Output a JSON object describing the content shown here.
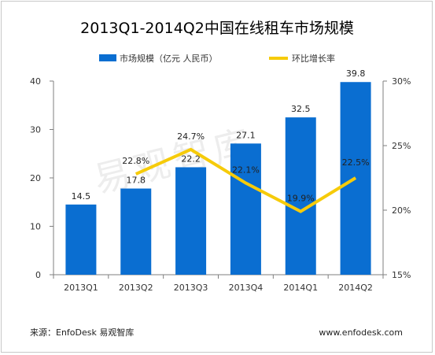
{
  "chart_data": {
    "type": "bar",
    "title": "2013Q1-2014Q2中国在线租车市场规模",
    "categories": [
      "2013Q1",
      "2013Q2",
      "2013Q3",
      "2013Q4",
      "2014Q1",
      "2014Q2"
    ],
    "series": [
      {
        "name": "市场规模（亿元 人民币）",
        "type": "bar",
        "axis": "left",
        "values": [
          14.5,
          17.8,
          22.2,
          27.1,
          32.5,
          39.8
        ],
        "labels": [
          "14.5",
          "17.8",
          "22.2",
          "27.1",
          "32.5",
          "39.8"
        ]
      },
      {
        "name": "环比增长率",
        "type": "line",
        "axis": "right",
        "values": [
          null,
          22.8,
          24.7,
          22.1,
          19.9,
          22.5
        ],
        "labels": [
          "",
          "22.8%",
          "24.7%",
          "22.1%",
          "19.9%",
          "22.5%"
        ]
      }
    ],
    "y_left": {
      "min": 0,
      "max": 40,
      "ticks": [
        "0",
        "10",
        "20",
        "30",
        "40"
      ]
    },
    "y_right": {
      "min": 15,
      "max": 30,
      "ticks": [
        "15%",
        "20%",
        "25%",
        "30%"
      ]
    },
    "legend_position": "top",
    "grid": false
  },
  "colors": {
    "bar": "#0a6ed1",
    "line": "#f6cb0a",
    "axis": "#7f7f7f",
    "frame": "#c8c8c8"
  },
  "source": "来源：EnfoDesk 易观智库",
  "website": "www.enfodesk.com",
  "watermark": "易观智库"
}
